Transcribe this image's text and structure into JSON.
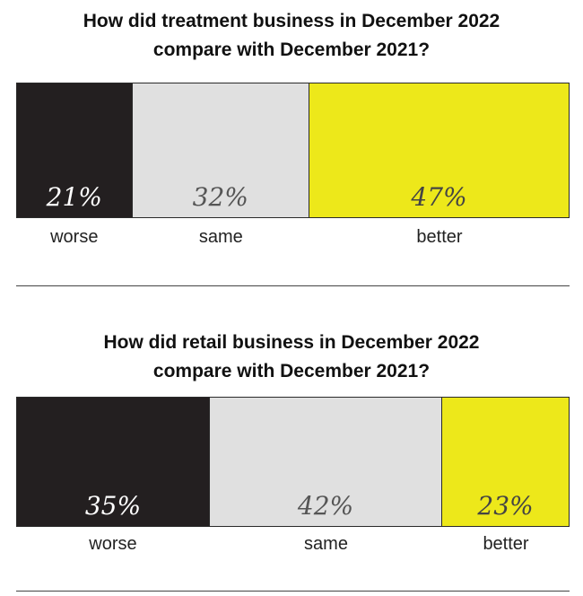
{
  "chart_data": [
    {
      "type": "bar",
      "stacked": true,
      "orientation": "horizontal",
      "title": "How did treatment business in December 2022 compare with December 2021?",
      "title_lines": [
        "How did treatment business in December 2022",
        "compare with December 2021?"
      ],
      "categories": [
        "worse",
        "same",
        "better"
      ],
      "values": [
        21,
        32,
        47
      ],
      "value_labels": [
        "21%",
        "32%",
        "47%"
      ],
      "unit": "%",
      "colors": [
        "#231f20",
        "#e0e0e0",
        "#ede81a"
      ],
      "value_text_colors": [
        "#ffffff",
        "#555555",
        "#444444"
      ]
    },
    {
      "type": "bar",
      "stacked": true,
      "orientation": "horizontal",
      "title": "How did retail business in December 2022 compare with December 2021?",
      "title_lines": [
        "How did retail business in December 2022",
        "compare with December 2021?"
      ],
      "categories": [
        "worse",
        "same",
        "better"
      ],
      "values": [
        35,
        42,
        23
      ],
      "value_labels": [
        "35%",
        "42%",
        "23%"
      ],
      "unit": "%",
      "colors": [
        "#231f20",
        "#e0e0e0",
        "#ede81a"
      ],
      "value_text_colors": [
        "#ffffff",
        "#555555",
        "#444444"
      ]
    }
  ]
}
